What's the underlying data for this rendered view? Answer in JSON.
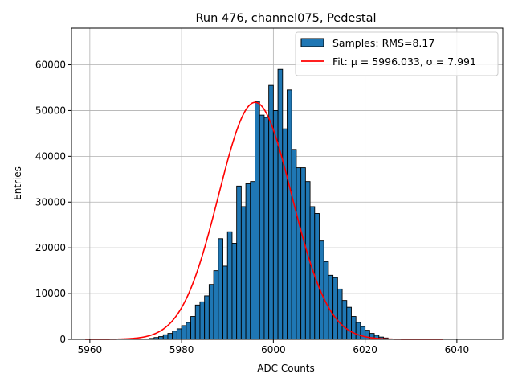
{
  "chart_data": {
    "type": "bar",
    "title": "Run 476, channel075, Pedestal",
    "xlabel": "ADC Counts",
    "ylabel": "Entries",
    "xlim": [
      5956,
      6050
    ],
    "ylim": [
      0,
      68000
    ],
    "xticks": [
      5960,
      5980,
      6000,
      6020,
      6040
    ],
    "yticks": [
      0,
      10000,
      20000,
      30000,
      40000,
      50000,
      60000
    ],
    "grid": true,
    "legend_position": "top-right",
    "colors": {
      "bar": "#1f77b4",
      "bar_edge": "#000000",
      "fit": "#ff0000",
      "grid": "#b0b0b0"
    },
    "legend": {
      "samples_label": "Samples: RMS=8.17",
      "fit_label": "Fit: μ = 5996.033, σ = 7.991"
    },
    "histogram": {
      "bin_start": 5959,
      "bin_width": 1,
      "counts": [
        0,
        0,
        0,
        0,
        0,
        0,
        0,
        0,
        0,
        0,
        0,
        0,
        0,
        100,
        200,
        400,
        600,
        1000,
        1300,
        1800,
        2300,
        3000,
        3700,
        5000,
        7500,
        8200,
        9500,
        12000,
        15000,
        22000,
        16000,
        23500,
        21000,
        33500,
        29000,
        34000,
        34500,
        52000,
        49000,
        48500,
        55500,
        50000,
        59000,
        46000,
        54500,
        41500,
        37500,
        37500,
        34500,
        29000,
        27500,
        21500,
        17000,
        14000,
        13500,
        11000,
        8500,
        7000,
        5000,
        3700,
        2800,
        2000,
        1300,
        900,
        500,
        300,
        100,
        0,
        0,
        0,
        0,
        0,
        0,
        0,
        0,
        0,
        0,
        0,
        0
      ]
    },
    "fit": {
      "type": "gaussian",
      "mu": 5996.033,
      "sigma": 7.991,
      "amplitude": 51800,
      "x_range": [
        5959,
        6037
      ]
    }
  }
}
